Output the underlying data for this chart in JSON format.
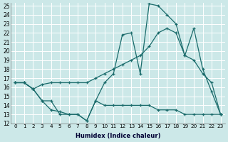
{
  "xlabel": "Humidex (Indice chaleur)",
  "xlim_min": -0.5,
  "xlim_max": 23.5,
  "ylim_min": 12,
  "ylim_max": 25.3,
  "yticks": [
    12,
    13,
    14,
    15,
    16,
    17,
    18,
    19,
    20,
    21,
    22,
    23,
    24,
    25
  ],
  "xticks": [
    0,
    1,
    2,
    3,
    4,
    5,
    6,
    7,
    8,
    9,
    10,
    11,
    12,
    13,
    14,
    15,
    16,
    17,
    18,
    19,
    20,
    21,
    22,
    23
  ],
  "background_color": "#cce8e8",
  "grid_color": "#ffffff",
  "line_color": "#1a6b6b",
  "series_max": [
    16.5,
    16.5,
    15.8,
    14.5,
    14.5,
    13.0,
    13.0,
    13.0,
    12.3,
    14.5,
    16.5,
    17.5,
    21.8,
    22.0,
    17.5,
    25.2,
    25.0,
    24.0,
    23.0,
    19.5,
    22.5,
    18.0,
    15.5,
    13.0
  ],
  "series_avg": [
    16.5,
    16.5,
    15.8,
    16.3,
    16.5,
    16.5,
    16.5,
    16.5,
    16.5,
    17.0,
    17.5,
    18.0,
    18.5,
    19.0,
    19.5,
    20.5,
    22.0,
    22.5,
    22.0,
    19.5,
    19.0,
    17.5,
    16.5,
    13.0
  ],
  "series_min": [
    16.5,
    16.5,
    15.8,
    14.5,
    13.5,
    13.3,
    13.0,
    13.0,
    12.3,
    14.5,
    14.0,
    14.0,
    14.0,
    14.0,
    14.0,
    14.0,
    13.5,
    13.5,
    13.5,
    13.0,
    13.0,
    13.0,
    13.0,
    13.0
  ]
}
